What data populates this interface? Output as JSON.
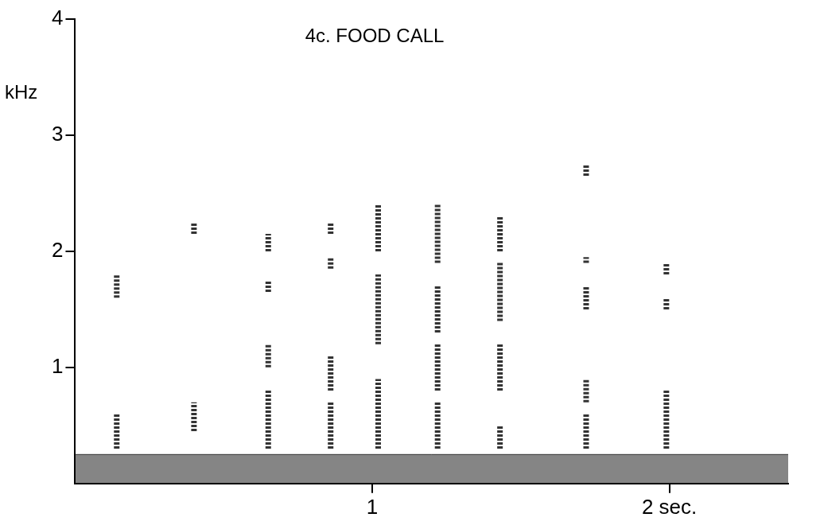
{
  "chart_data": {
    "type": "spectrogram",
    "title": "4c. FOOD CALL",
    "y_label": "kHz",
    "color": "#333333",
    "xlim": [
      0,
      2.4
    ],
    "xticks": [
      1,
      {
        "value": 2,
        "label": "2 sec."
      }
    ],
    "ylim": [
      0,
      4
    ],
    "yticks": [
      1,
      2,
      3,
      4
    ],
    "grid": false,
    "noise_band": [
      0,
      0.25
    ],
    "notes": [
      {
        "t": 0.14,
        "bands": [
          [
            0.3,
            0.6
          ],
          [
            1.6,
            1.8
          ]
        ]
      },
      {
        "t": 0.4,
        "bands": [
          [
            0.45,
            0.7
          ],
          [
            2.15,
            2.25
          ]
        ]
      },
      {
        "t": 0.65,
        "bands": [
          [
            0.3,
            0.8
          ],
          [
            1.0,
            1.2
          ],
          [
            1.65,
            1.75
          ],
          [
            2.0,
            2.15
          ]
        ]
      },
      {
        "t": 0.86,
        "bands": [
          [
            0.3,
            0.7
          ],
          [
            0.8,
            1.1
          ],
          [
            1.85,
            1.95
          ],
          [
            2.15,
            2.25
          ]
        ]
      },
      {
        "t": 1.02,
        "bands": [
          [
            0.3,
            0.9
          ],
          [
            1.2,
            1.8
          ],
          [
            2.0,
            2.4
          ]
        ]
      },
      {
        "t": 1.22,
        "bands": [
          [
            0.3,
            0.7
          ],
          [
            0.8,
            1.2
          ],
          [
            1.3,
            1.7
          ],
          [
            1.9,
            2.4
          ]
        ]
      },
      {
        "t": 1.43,
        "bands": [
          [
            0.3,
            0.5
          ],
          [
            0.8,
            1.2
          ],
          [
            1.4,
            1.9
          ],
          [
            2.0,
            2.3
          ]
        ]
      },
      {
        "t": 1.72,
        "bands": [
          [
            0.3,
            0.6
          ],
          [
            0.7,
            0.9
          ],
          [
            1.5,
            1.7
          ],
          [
            1.9,
            1.95
          ],
          [
            2.65,
            2.75
          ]
        ]
      },
      {
        "t": 1.99,
        "bands": [
          [
            0.3,
            0.8
          ],
          [
            1.5,
            1.6
          ],
          [
            1.8,
            1.9
          ]
        ]
      }
    ]
  }
}
